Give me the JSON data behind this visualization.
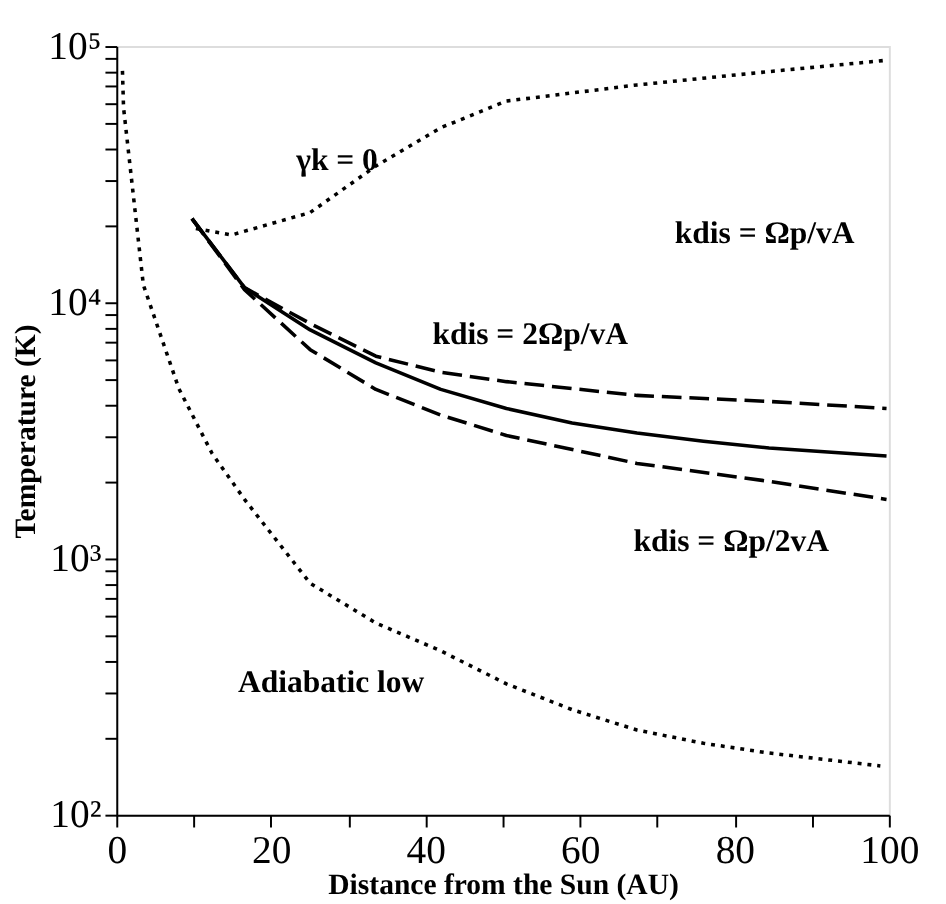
{
  "chart_data": {
    "type": "line",
    "xlabel": "Distance from the Sun (AU)",
    "ylabel": "Temperature (K)",
    "xlim": [
      0,
      100
    ],
    "ylim": [
      100,
      100000
    ],
    "log": "y",
    "grid": false,
    "legend": false,
    "marker": "none",
    "xticks": [
      0,
      {
        "value": 10,
        "label": null
      },
      20,
      {
        "value": 30,
        "label": null
      },
      40,
      {
        "value": 50,
        "label": null
      },
      60,
      {
        "value": 70,
        "label": null
      },
      80,
      {
        "value": 90,
        "label": null
      },
      100
    ],
    "yticks": [
      {
        "value": 100,
        "label": "10²"
      },
      {
        "value": 200,
        "label": null
      },
      {
        "value": 300,
        "label": null
      },
      {
        "value": 400,
        "label": null
      },
      {
        "value": 500,
        "label": null
      },
      {
        "value": 600,
        "label": null
      },
      {
        "value": 700,
        "label": null
      },
      {
        "value": 800,
        "label": null
      },
      {
        "value": 900,
        "label": null
      },
      {
        "value": 1000,
        "label": "10³"
      },
      {
        "value": 2000,
        "label": null
      },
      {
        "value": 3000,
        "label": null
      },
      {
        "value": 4000,
        "label": null
      },
      {
        "value": 5000,
        "label": null
      },
      {
        "value": 6000,
        "label": null
      },
      {
        "value": 7000,
        "label": null
      },
      {
        "value": 8000,
        "label": null
      },
      {
        "value": 9000,
        "label": null
      },
      {
        "value": 10000,
        "label": "10⁴"
      },
      {
        "value": 20000,
        "label": null
      },
      {
        "value": 30000,
        "label": null
      },
      {
        "value": 40000,
        "label": null
      },
      {
        "value": 50000,
        "label": null
      },
      {
        "value": 60000,
        "label": null
      },
      {
        "value": 70000,
        "label": null
      },
      {
        "value": 80000,
        "label": null
      },
      {
        "value": 90000,
        "label": null
      },
      {
        "value": 100000,
        "label": "10⁵"
      }
    ],
    "series": [
      {
        "color": "#000000",
        "line_style": "dotted",
        "x": [
          0.8,
          0.94,
          3.5,
          8.1,
          12.4,
          16.6,
          25.1,
          33.6,
          42,
          50.5,
          59,
          67.4,
          76,
          84.5,
          98.9
        ],
        "values": [
          80000,
          57500,
          11700,
          4600,
          2570,
          1700,
          800,
          560,
          436,
          324,
          257,
          214,
          190,
          174,
          155
        ]
      },
      {
        "color": "#000000",
        "line_style": "dotted",
        "x": [
          10.3,
          14.9,
          25.1,
          33.6,
          42,
          50.5,
          67.4,
          84.5,
          99.7
        ],
        "values": [
          19400,
          18300,
          22400,
          34000,
          48000,
          61000,
          70500,
          79500,
          88000
        ]
      },
      {
        "color": "#000000",
        "line_style": "solid",
        "x": [
          9.8,
          16.6,
          25.1,
          33.6,
          42,
          50.5,
          59,
          67.4,
          76,
          84.5,
          99.7
        ],
        "values": [
          21200,
          11400,
          7800,
          5800,
          4570,
          3850,
          3380,
          3090,
          2870,
          2700,
          2510
        ]
      },
      {
        "color": "#000000",
        "line_style": "dashed",
        "x": [
          9.8,
          16.6,
          25.1,
          33.6,
          42,
          50.5,
          67.4,
          84.5,
          99.7
        ],
        "values": [
          21200,
          11400,
          8260,
          6160,
          5330,
          4900,
          4330,
          4100,
          3850
        ]
      },
      {
        "color": "#000000",
        "line_style": "dashed",
        "x": [
          9.8,
          16.6,
          25.1,
          33.6,
          42,
          50.5,
          67.4,
          84.5,
          99.7
        ],
        "values": [
          21200,
          11200,
          6530,
          4570,
          3630,
          3020,
          2350,
          2000,
          1700
        ]
      }
    ],
    "annotations": [
      "γk = 0",
      "kdis = Ωp/vA",
      "kdis = 2Ωp/vA",
      "kdis = Ωp/2vA",
      "Adiabatic low"
    ]
  }
}
